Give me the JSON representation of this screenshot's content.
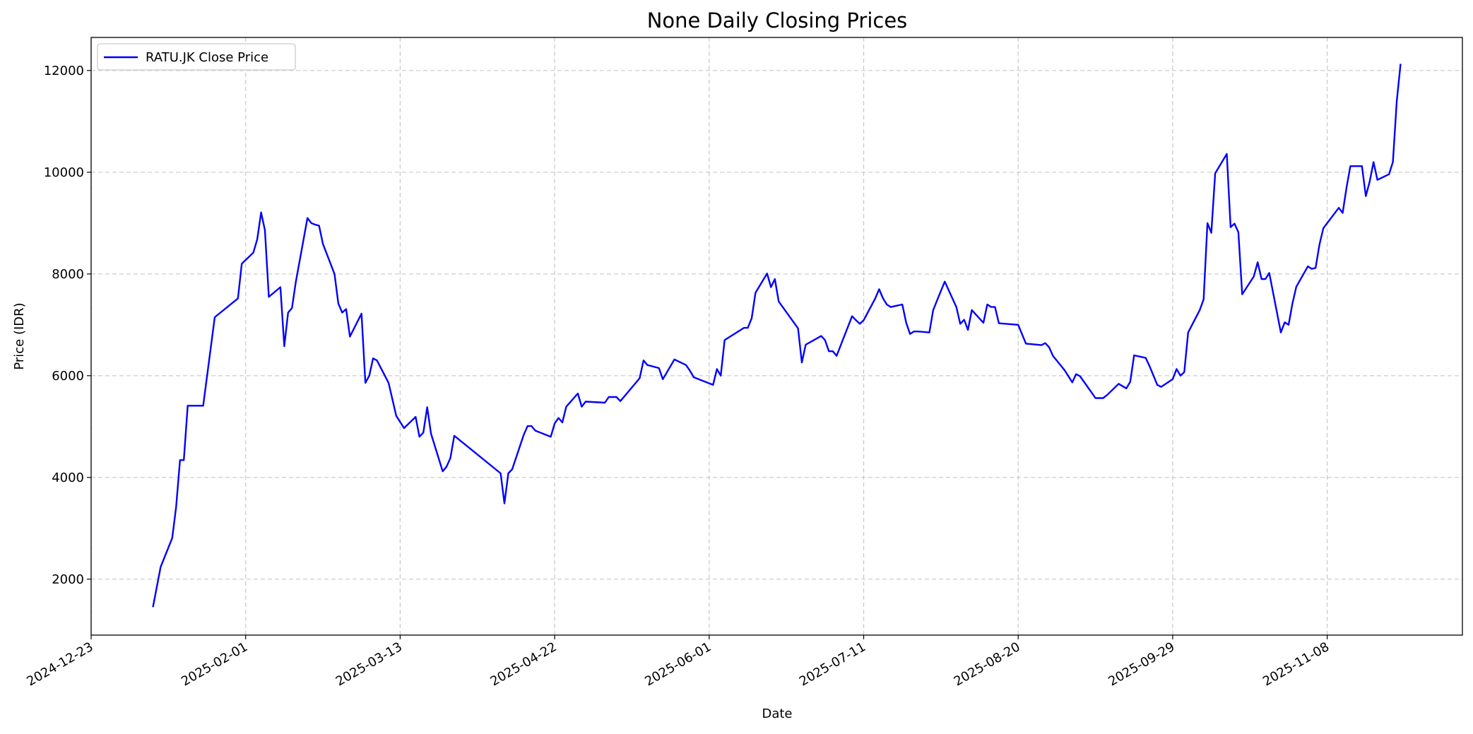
{
  "chart_data": {
    "type": "line",
    "title": "None Daily Closing Prices",
    "xlabel": "Date",
    "ylabel": "Price (IDR)",
    "xlim": [
      "2024-12-23",
      "2025-12-13"
    ],
    "ylim": [
      900,
      12650
    ],
    "grid": true,
    "legend_position": "top-left",
    "xticks": [
      "2024-12-23",
      "2025-02-01",
      "2025-03-13",
      "2025-04-22",
      "2025-06-01",
      "2025-07-11",
      "2025-08-20",
      "2025-09-29",
      "2025-11-08"
    ],
    "yticks": [
      2000,
      4000,
      6000,
      8000,
      10000,
      12000
    ],
    "series": [
      {
        "name": "RATU.JK Close Price",
        "color": "#0000ff",
        "points": [
          [
            "2025-01-08",
            1450
          ],
          [
            "2025-01-10",
            2240
          ],
          [
            "2025-01-13",
            2810
          ],
          [
            "2025-01-14",
            3420
          ],
          [
            "2025-01-15",
            4340
          ],
          [
            "2025-01-16",
            4340
          ],
          [
            "2025-01-17",
            5410
          ],
          [
            "2025-01-21",
            5410
          ],
          [
            "2025-01-24",
            7150
          ],
          [
            "2025-01-30",
            7520
          ],
          [
            "2025-01-31",
            8200
          ],
          [
            "2025-02-03",
            8420
          ],
          [
            "2025-02-04",
            8680
          ],
          [
            "2025-02-05",
            9210
          ],
          [
            "2025-02-06",
            8860
          ],
          [
            "2025-02-07",
            7550
          ],
          [
            "2025-02-10",
            7740
          ],
          [
            "2025-02-11",
            6580
          ],
          [
            "2025-02-12",
            7240
          ],
          [
            "2025-02-13",
            7330
          ],
          [
            "2025-02-14",
            7850
          ],
          [
            "2025-02-17",
            9100
          ],
          [
            "2025-02-18",
            9000
          ],
          [
            "2025-02-19",
            8970
          ],
          [
            "2025-02-20",
            8950
          ],
          [
            "2025-02-21",
            8590
          ],
          [
            "2025-02-24",
            8000
          ],
          [
            "2025-02-25",
            7420
          ],
          [
            "2025-02-26",
            7240
          ],
          [
            "2025-02-27",
            7310
          ],
          [
            "2025-02-28",
            6770
          ],
          [
            "2025-03-03",
            7220
          ],
          [
            "2025-03-04",
            5860
          ],
          [
            "2025-03-05",
            6000
          ],
          [
            "2025-03-06",
            6340
          ],
          [
            "2025-03-07",
            6300
          ],
          [
            "2025-03-10",
            5860
          ],
          [
            "2025-03-12",
            5210
          ],
          [
            "2025-03-14",
            4970
          ],
          [
            "2025-03-17",
            5190
          ],
          [
            "2025-03-18",
            4800
          ],
          [
            "2025-03-19",
            4880
          ],
          [
            "2025-03-20",
            5380
          ],
          [
            "2025-03-21",
            4860
          ],
          [
            "2025-03-24",
            4120
          ],
          [
            "2025-03-25",
            4210
          ],
          [
            "2025-03-26",
            4380
          ],
          [
            "2025-03-27",
            4820
          ],
          [
            "2025-04-08",
            4080
          ],
          [
            "2025-04-09",
            3490
          ],
          [
            "2025-04-10",
            4080
          ],
          [
            "2025-04-11",
            4160
          ],
          [
            "2025-04-14",
            4840
          ],
          [
            "2025-04-15",
            5010
          ],
          [
            "2025-04-16",
            5010
          ],
          [
            "2025-04-17",
            4920
          ],
          [
            "2025-04-21",
            4800
          ],
          [
            "2025-04-22",
            5060
          ],
          [
            "2025-04-23",
            5170
          ],
          [
            "2025-04-24",
            5080
          ],
          [
            "2025-04-25",
            5390
          ],
          [
            "2025-04-28",
            5650
          ],
          [
            "2025-04-29",
            5390
          ],
          [
            "2025-04-30",
            5490
          ],
          [
            "2025-05-05",
            5470
          ],
          [
            "2025-05-06",
            5580
          ],
          [
            "2025-05-08",
            5580
          ],
          [
            "2025-05-09",
            5500
          ],
          [
            "2025-05-14",
            5950
          ],
          [
            "2025-05-15",
            6300
          ],
          [
            "2025-05-16",
            6210
          ],
          [
            "2025-05-19",
            6150
          ],
          [
            "2025-05-20",
            5930
          ],
          [
            "2025-05-23",
            6320
          ],
          [
            "2025-05-26",
            6210
          ],
          [
            "2025-05-27",
            6100
          ],
          [
            "2025-05-28",
            5970
          ],
          [
            "2025-06-02",
            5820
          ],
          [
            "2025-06-03",
            6130
          ],
          [
            "2025-06-04",
            6000
          ],
          [
            "2025-06-05",
            6700
          ],
          [
            "2025-06-10",
            6940
          ],
          [
            "2025-06-11",
            6940
          ],
          [
            "2025-06-12",
            7130
          ],
          [
            "2025-06-13",
            7630
          ],
          [
            "2025-06-16",
            8010
          ],
          [
            "2025-06-17",
            7740
          ],
          [
            "2025-06-18",
            7900
          ],
          [
            "2025-06-19",
            7460
          ],
          [
            "2025-06-24",
            6930
          ],
          [
            "2025-06-25",
            6260
          ],
          [
            "2025-06-26",
            6610
          ],
          [
            "2025-06-30",
            6780
          ],
          [
            "2025-07-01",
            6700
          ],
          [
            "2025-07-02",
            6480
          ],
          [
            "2025-07-03",
            6480
          ],
          [
            "2025-07-04",
            6390
          ],
          [
            "2025-07-08",
            7170
          ],
          [
            "2025-07-09",
            7090
          ],
          [
            "2025-07-10",
            7020
          ],
          [
            "2025-07-11",
            7090
          ],
          [
            "2025-07-14",
            7520
          ],
          [
            "2025-07-15",
            7700
          ],
          [
            "2025-07-16",
            7520
          ],
          [
            "2025-07-17",
            7400
          ],
          [
            "2025-07-18",
            7350
          ],
          [
            "2025-07-21",
            7400
          ],
          [
            "2025-07-22",
            7040
          ],
          [
            "2025-07-23",
            6820
          ],
          [
            "2025-07-24",
            6870
          ],
          [
            "2025-07-25",
            6870
          ],
          [
            "2025-07-28",
            6850
          ],
          [
            "2025-07-29",
            7290
          ],
          [
            "2025-07-30",
            7480
          ],
          [
            "2025-08-01",
            7850
          ],
          [
            "2025-08-04",
            7350
          ],
          [
            "2025-08-05",
            7020
          ],
          [
            "2025-08-06",
            7100
          ],
          [
            "2025-08-07",
            6900
          ],
          [
            "2025-08-08",
            7290
          ],
          [
            "2025-08-11",
            7040
          ],
          [
            "2025-08-12",
            7400
          ],
          [
            "2025-08-13",
            7350
          ],
          [
            "2025-08-14",
            7350
          ],
          [
            "2025-08-15",
            7030
          ],
          [
            "2025-08-20",
            7000
          ],
          [
            "2025-08-22",
            6630
          ],
          [
            "2025-08-25",
            6610
          ],
          [
            "2025-08-26",
            6600
          ],
          [
            "2025-08-27",
            6640
          ],
          [
            "2025-08-28",
            6560
          ],
          [
            "2025-08-29",
            6390
          ],
          [
            "2025-09-01",
            6110
          ],
          [
            "2025-09-03",
            5870
          ],
          [
            "2025-09-04",
            6030
          ],
          [
            "2025-09-05",
            5990
          ],
          [
            "2025-09-08",
            5670
          ],
          [
            "2025-09-09",
            5560
          ],
          [
            "2025-09-11",
            5560
          ],
          [
            "2025-09-12",
            5620
          ],
          [
            "2025-09-15",
            5840
          ],
          [
            "2025-09-17",
            5750
          ],
          [
            "2025-09-18",
            5880
          ],
          [
            "2025-09-19",
            6400
          ],
          [
            "2025-09-22",
            6350
          ],
          [
            "2025-09-23",
            6190
          ],
          [
            "2025-09-25",
            5820
          ],
          [
            "2025-09-26",
            5780
          ],
          [
            "2025-09-29",
            5930
          ],
          [
            "2025-09-30",
            6130
          ],
          [
            "2025-10-01",
            6000
          ],
          [
            "2025-10-02",
            6070
          ],
          [
            "2025-10-03",
            6850
          ],
          [
            "2025-10-06",
            7290
          ],
          [
            "2025-10-07",
            7500
          ],
          [
            "2025-10-08",
            9000
          ],
          [
            "2025-10-09",
            8810
          ],
          [
            "2025-10-10",
            9980
          ],
          [
            "2025-10-13",
            10360
          ],
          [
            "2025-10-14",
            8920
          ],
          [
            "2025-10-15",
            8990
          ],
          [
            "2025-10-16",
            8820
          ],
          [
            "2025-10-17",
            7600
          ],
          [
            "2025-10-20",
            7950
          ],
          [
            "2025-10-21",
            8230
          ],
          [
            "2025-10-22",
            7900
          ],
          [
            "2025-10-23",
            7900
          ],
          [
            "2025-10-24",
            8020
          ],
          [
            "2025-10-27",
            6850
          ],
          [
            "2025-10-28",
            7050
          ],
          [
            "2025-10-29",
            7000
          ],
          [
            "2025-10-30",
            7420
          ],
          [
            "2025-10-31",
            7750
          ],
          [
            "2025-11-03",
            8150
          ],
          [
            "2025-11-04",
            8100
          ],
          [
            "2025-11-05",
            8120
          ],
          [
            "2025-11-06",
            8580
          ],
          [
            "2025-11-07",
            8900
          ],
          [
            "2025-11-11",
            9300
          ],
          [
            "2025-11-12",
            9200
          ],
          [
            "2025-11-13",
            9700
          ],
          [
            "2025-11-14",
            10120
          ],
          [
            "2025-11-17",
            10120
          ],
          [
            "2025-11-18",
            9530
          ],
          [
            "2025-11-19",
            9820
          ],
          [
            "2025-11-20",
            10200
          ],
          [
            "2025-11-21",
            9850
          ],
          [
            "2025-11-24",
            9960
          ],
          [
            "2025-11-25",
            10200
          ],
          [
            "2025-11-26",
            11400
          ],
          [
            "2025-11-27",
            12130
          ]
        ]
      }
    ]
  }
}
